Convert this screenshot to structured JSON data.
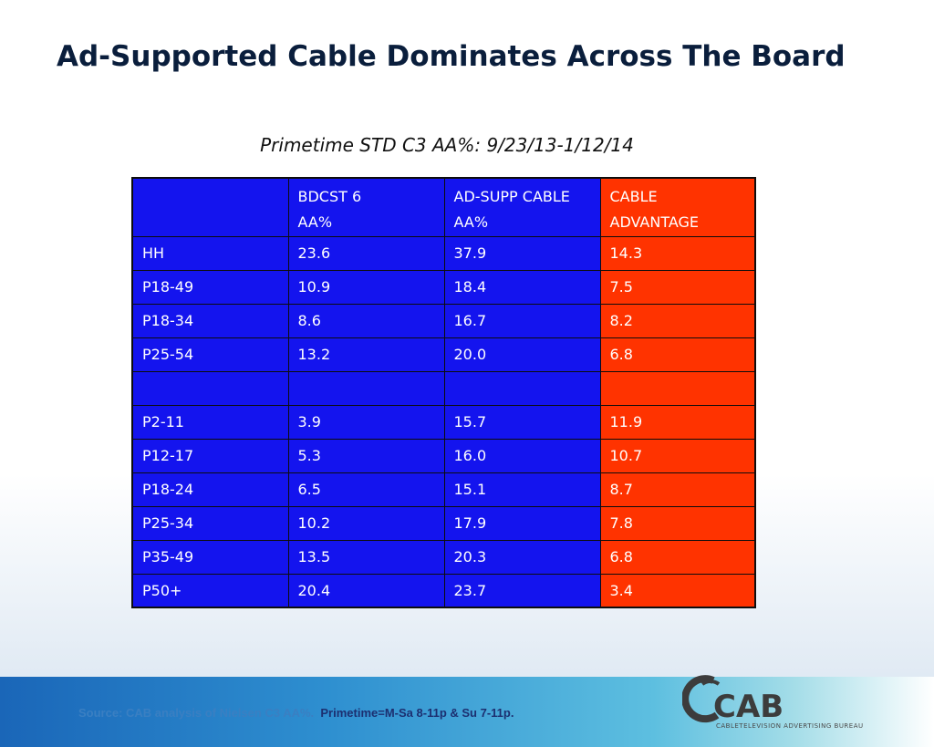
{
  "title": "Ad-Supported Cable Dominates Across The Board",
  "subtitle": "Primetime STD C3 AA%: 9/23/13-1/12/14",
  "table": {
    "headers": [
      {
        "line1": "",
        "line2": ""
      },
      {
        "line1": "BDCST 6",
        "line2": "AA%"
      },
      {
        "line1": "AD-SUPP CABLE",
        "line2": "AA%"
      },
      {
        "line1": "CABLE",
        "line2": "ADVANTAGE"
      }
    ],
    "rows": [
      [
        "HH",
        "23.6",
        "37.9",
        "14.3"
      ],
      [
        "P18-49",
        "10.9",
        "18.4",
        "7.5"
      ],
      [
        "P18-34",
        "8.6",
        "16.7",
        "8.2"
      ],
      [
        "P25-54",
        "13.2",
        "20.0",
        "6.8"
      ],
      [
        "",
        "",
        "",
        ""
      ],
      [
        "P2-11",
        "3.9",
        "15.7",
        "11.9"
      ],
      [
        "P12-17",
        "5.3",
        "16.0",
        "10.7"
      ],
      [
        "P18-24",
        "6.5",
        "15.1",
        "8.7"
      ],
      [
        "P25-34",
        "10.2",
        "17.9",
        "7.8"
      ],
      [
        "P35-49",
        "13.5",
        "20.3",
        "6.8"
      ],
      [
        "P50+",
        "20.4",
        "23.7",
        "3.4"
      ]
    ]
  },
  "footer": {
    "source": "Source: CAB analysis of Nielsen C3 AA%.",
    "primetime": "Primetime=M-Sa 8-11p & Su 7-11p."
  },
  "logo": {
    "text": "CAB",
    "subtext": "CABLETELEVISION ADVERTISING BUREAU"
  },
  "colors": {
    "broadcast_col": "#1414ee",
    "advantage_col": "#ff3300",
    "title": "#0a1e3c"
  }
}
